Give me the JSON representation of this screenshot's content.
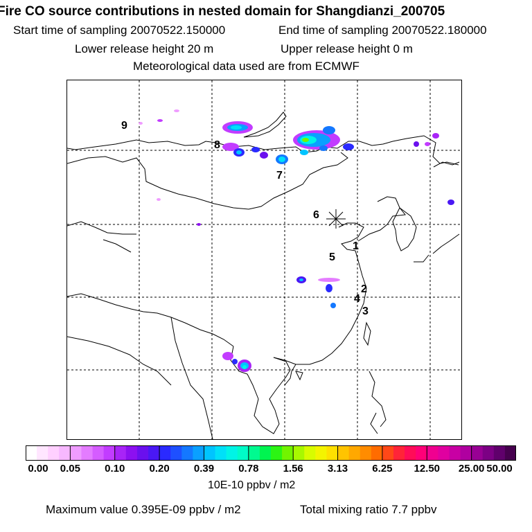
{
  "header": {
    "title": "Fire CO source contributions in nested domain for Shangdianzi_200705",
    "start_label": "Start time of sampling 20070522.150000",
    "end_label": "End time of sampling 20070522.180000",
    "lower_release": "Lower release height   20 m",
    "upper_release": "Upper release height    0 m",
    "met_data": "Meteorological data used are from ECMWF"
  },
  "map": {
    "receptor_name": "Shangdianzi",
    "markers": [
      "1",
      "2",
      "3",
      "4",
      "5",
      "6",
      "7",
      "8",
      "9"
    ]
  },
  "colorbar": {
    "ticks": [
      "0.00",
      "0.05",
      "0.10",
      "0.20",
      "0.39",
      "0.78",
      "1.56",
      "3.13",
      "6.25",
      "12.50",
      "25.00",
      "50.00"
    ],
    "colors": [
      "#ffffff",
      "#ffe6ff",
      "#ffd0ff",
      "#f7b8ff",
      "#ef9cff",
      "#e47cff",
      "#d55cff",
      "#c23cff",
      "#a824f7",
      "#8c10f0",
      "#6a10ee",
      "#4a18f4",
      "#2a2aff",
      "#1e50ff",
      "#1478ff",
      "#0aa0ff",
      "#00c4ff",
      "#00e0f8",
      "#00f4e6",
      "#00fcc8",
      "#00fa90",
      "#00f450",
      "#2cf414",
      "#72f400",
      "#a8f800",
      "#d8fc00",
      "#f4f400",
      "#ffe000",
      "#ffc400",
      "#ffa800",
      "#ff8c00",
      "#ff6c00",
      "#ff4818",
      "#ff2438",
      "#ff0c58",
      "#ff0078",
      "#f00090",
      "#e000a0",
      "#c800a4",
      "#b000a0",
      "#980094",
      "#7c0084",
      "#60006c",
      "#46004e"
    ],
    "units": "10E-10 ppbv / m2"
  },
  "footer": {
    "max_value": "Maximum value  0.395E-09 ppbv / m2",
    "total_mixing": "Total mixing ratio        7.7 ppbv"
  }
}
